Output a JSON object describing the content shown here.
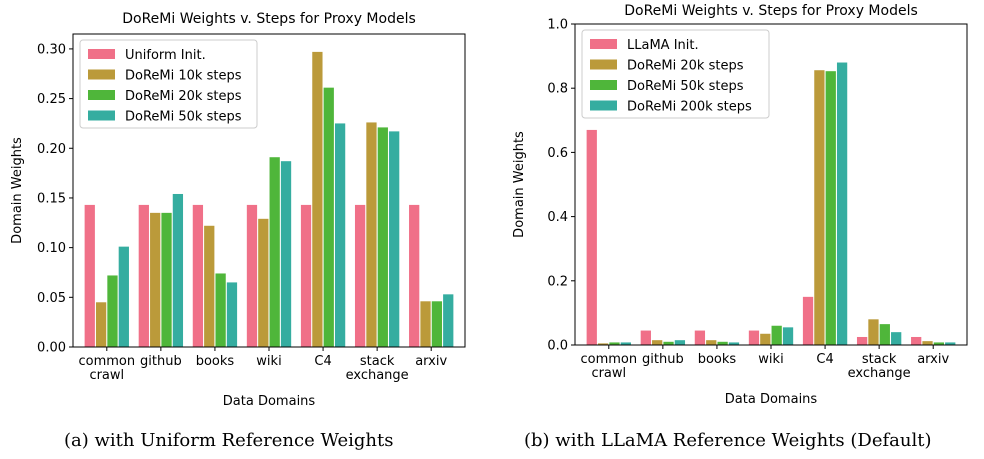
{
  "figure": {
    "caption_a": "(a) with Uniform Reference Weights",
    "caption_b": "(b) with LLaMA Reference Weights (Default)"
  },
  "chart_data": [
    {
      "type": "bar",
      "title": "DoReMi Weights v. Steps for Proxy Models",
      "xlabel": "Data Domains",
      "ylabel": "Domain Weights",
      "ylim": [
        0,
        0.315
      ],
      "yticks": [
        0.0,
        0.05,
        0.1,
        0.15,
        0.2,
        0.25,
        0.3
      ],
      "ytick_labels": [
        "0.00",
        "0.05",
        "0.10",
        "0.15",
        "0.20",
        "0.25",
        "0.30"
      ],
      "categories": [
        "common\ncrawl",
        "github",
        "books",
        "wiki",
        "C4",
        "stack\nexchange",
        "arxiv"
      ],
      "legend_position": "top-left",
      "grid": false,
      "series": [
        {
          "name": "Uniform Init.",
          "color": "#f07088",
          "values": [
            0.143,
            0.143,
            0.143,
            0.143,
            0.143,
            0.143,
            0.143
          ]
        },
        {
          "name": "DoReMi 10k steps",
          "color": "#bb9a3a",
          "values": [
            0.045,
            0.135,
            0.122,
            0.129,
            0.297,
            0.226,
            0.046
          ]
        },
        {
          "name": "DoReMi 20k steps",
          "color": "#4fb63a",
          "values": [
            0.072,
            0.135,
            0.074,
            0.191,
            0.261,
            0.221,
            0.046
          ]
        },
        {
          "name": "DoReMi 50k steps",
          "color": "#35ada0",
          "values": [
            0.101,
            0.154,
            0.065,
            0.187,
            0.225,
            0.217,
            0.053
          ]
        }
      ]
    },
    {
      "type": "bar",
      "title": "DoReMi Weights v. Steps for Proxy Models",
      "xlabel": "Data Domains",
      "ylabel": "Domain Weights",
      "ylim": [
        0,
        1.0
      ],
      "yticks": [
        0.0,
        0.2,
        0.4,
        0.6,
        0.8,
        1.0
      ],
      "ytick_labels": [
        "0.0",
        "0.2",
        "0.4",
        "0.6",
        "0.8",
        "1.0"
      ],
      "categories": [
        "common\ncrawl",
        "github",
        "books",
        "wiki",
        "C4",
        "stack\nexchange",
        "arxiv"
      ],
      "legend_position": "top-left",
      "grid": false,
      "series": [
        {
          "name": "LLaMA Init.",
          "color": "#f07088",
          "values": [
            0.67,
            0.045,
            0.045,
            0.045,
            0.15,
            0.025,
            0.025
          ]
        },
        {
          "name": "DoReMi 20k steps",
          "color": "#bb9a3a",
          "values": [
            0.005,
            0.015,
            0.015,
            0.035,
            0.856,
            0.08,
            0.012
          ]
        },
        {
          "name": "DoReMi 50k steps",
          "color": "#4fb63a",
          "values": [
            0.008,
            0.01,
            0.01,
            0.06,
            0.853,
            0.065,
            0.008
          ]
        },
        {
          "name": "DoReMi 200k steps",
          "color": "#35ada0",
          "values": [
            0.008,
            0.015,
            0.008,
            0.055,
            0.88,
            0.04,
            0.008
          ]
        }
      ]
    }
  ]
}
